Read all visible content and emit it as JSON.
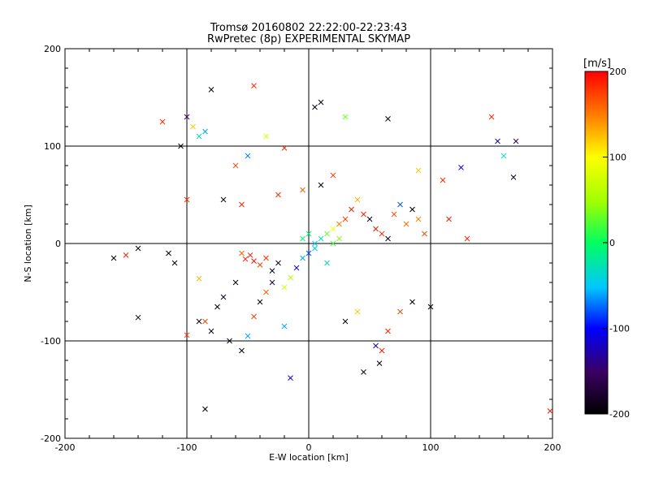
{
  "chart_data": {
    "type": "scatter",
    "title": "Tromsø 20160802 22:22:00-22:23:43",
    "subtitle": "RwPretec (8p) EXPERIMENTAL SKYMAP",
    "xlabel": "E-W location [km]",
    "ylabel": "N-S location [km]",
    "xlim": [
      -200,
      200
    ],
    "ylim": [
      -200,
      200
    ],
    "x_ticks": [
      "-200",
      "-100",
      "0",
      "100",
      "200"
    ],
    "y_ticks": [
      "-200",
      "-100",
      "0",
      "100",
      "200"
    ],
    "grid": true,
    "colorbar": {
      "label": "[m/s]",
      "range": [
        -200,
        200
      ],
      "ticks": [
        "-200",
        "-100",
        "0",
        "100",
        "200"
      ],
      "colormap": "rainbow: black-purple-blue-cyan-green-yellow-orange-red"
    },
    "marker_legend": "x = large marker, . = small marker (points colored by velocity)",
    "points": [
      {
        "x": -52,
        "y": -16,
        "v": 190,
        "m": "x"
      },
      {
        "x": -48,
        "y": -12,
        "v": 185,
        "m": "x"
      },
      {
        "x": -45,
        "y": -18,
        "v": 195,
        "m": "x"
      },
      {
        "x": -40,
        "y": -22,
        "v": 175,
        "m": "x"
      },
      {
        "x": -55,
        "y": -10,
        "v": 160,
        "m": "x"
      },
      {
        "x": -35,
        "y": -15,
        "v": 180,
        "m": "x"
      },
      {
        "x": -30,
        "y": -28,
        "v": -190,
        "m": "x"
      },
      {
        "x": -25,
        "y": -20,
        "v": -180,
        "m": "x"
      },
      {
        "x": -60,
        "y": -40,
        "v": -195,
        "m": "x"
      },
      {
        "x": -70,
        "y": -55,
        "v": -185,
        "m": "x"
      },
      {
        "x": -80,
        "y": -90,
        "v": -190,
        "m": "x"
      },
      {
        "x": -85,
        "y": -80,
        "v": 170,
        "m": "x"
      },
      {
        "x": -75,
        "y": -65,
        "v": -200,
        "m": "x"
      },
      {
        "x": -65,
        "y": -100,
        "v": -185,
        "m": "x"
      },
      {
        "x": -55,
        "y": -110,
        "v": -190,
        "m": "x"
      },
      {
        "x": -50,
        "y": -95,
        "v": -60,
        "m": "x"
      },
      {
        "x": -45,
        "y": -75,
        "v": 175,
        "m": "x"
      },
      {
        "x": -40,
        "y": -60,
        "v": -190,
        "m": "x"
      },
      {
        "x": -35,
        "y": -50,
        "v": 160,
        "m": "x"
      },
      {
        "x": -30,
        "y": -40,
        "v": -170,
        "m": "x"
      },
      {
        "x": -20,
        "y": -45,
        "v": 80,
        "m": "x"
      },
      {
        "x": -15,
        "y": -35,
        "v": 60,
        "m": "x"
      },
      {
        "x": -10,
        "y": -25,
        "v": -120,
        "m": "x"
      },
      {
        "x": -5,
        "y": -15,
        "v": -60,
        "m": "x"
      },
      {
        "x": 0,
        "y": -10,
        "v": -80,
        "m": "x"
      },
      {
        "x": 5,
        "y": -5,
        "v": -40,
        "m": "x"
      },
      {
        "x": 10,
        "y": 5,
        "v": -30,
        "m": "x"
      },
      {
        "x": 15,
        "y": 10,
        "v": 30,
        "m": "x"
      },
      {
        "x": 20,
        "y": 15,
        "v": 100,
        "m": "x"
      },
      {
        "x": 25,
        "y": 20,
        "v": 150,
        "m": "x"
      },
      {
        "x": 30,
        "y": 25,
        "v": 175,
        "m": "x"
      },
      {
        "x": 35,
        "y": 35,
        "v": 190,
        "m": "x"
      },
      {
        "x": 40,
        "y": 45,
        "v": 130,
        "m": "x"
      },
      {
        "x": 45,
        "y": 30,
        "v": 185,
        "m": "x"
      },
      {
        "x": 50,
        "y": 25,
        "v": -190,
        "m": "x"
      },
      {
        "x": 55,
        "y": 15,
        "v": 195,
        "m": "x"
      },
      {
        "x": 60,
        "y": 10,
        "v": 180,
        "m": "x"
      },
      {
        "x": 65,
        "y": 5,
        "v": -185,
        "m": "x"
      },
      {
        "x": 70,
        "y": 30,
        "v": 170,
        "m": "x"
      },
      {
        "x": 75,
        "y": 40,
        "v": -80,
        "m": "x"
      },
      {
        "x": 80,
        "y": 20,
        "v": 160,
        "m": "x"
      },
      {
        "x": 85,
        "y": 35,
        "v": -195,
        "m": "x"
      },
      {
        "x": 90,
        "y": 25,
        "v": 150,
        "m": "x"
      },
      {
        "x": 95,
        "y": 10,
        "v": 170,
        "m": "x"
      },
      {
        "x": 110,
        "y": 65,
        "v": 185,
        "m": "x"
      },
      {
        "x": 115,
        "y": 25,
        "v": 190,
        "m": "x"
      },
      {
        "x": 130,
        "y": 5,
        "v": 185,
        "m": "x"
      },
      {
        "x": 150,
        "y": 130,
        "v": 185,
        "m": "x"
      },
      {
        "x": 155,
        "y": 105,
        "v": -120,
        "m": "x"
      },
      {
        "x": 160,
        "y": 90,
        "v": -30,
        "m": "x"
      },
      {
        "x": 170,
        "y": 105,
        "v": -150,
        "m": "x"
      },
      {
        "x": 168,
        "y": 68,
        "v": -190,
        "m": "x"
      },
      {
        "x": 125,
        "y": 78,
        "v": -120,
        "m": "x"
      },
      {
        "x": 198,
        "y": -172,
        "v": 190,
        "m": "x"
      },
      {
        "x": -160,
        "y": -15,
        "v": -195,
        "m": "x"
      },
      {
        "x": -150,
        "y": -12,
        "v": 185,
        "m": "x"
      },
      {
        "x": -140,
        "y": -5,
        "v": -190,
        "m": "x"
      },
      {
        "x": -140,
        "y": -76,
        "v": -195,
        "m": "x"
      },
      {
        "x": -115,
        "y": -10,
        "v": -190,
        "m": "x"
      },
      {
        "x": -110,
        "y": -20,
        "v": -195,
        "m": "x"
      },
      {
        "x": -100,
        "y": 45,
        "v": 180,
        "m": "x"
      },
      {
        "x": -105,
        "y": 100,
        "v": -195,
        "m": "x"
      },
      {
        "x": -120,
        "y": 125,
        "v": 185,
        "m": "x"
      },
      {
        "x": -100,
        "y": 130,
        "v": -150,
        "m": "x"
      },
      {
        "x": -95,
        "y": 120,
        "v": 120,
        "m": "x"
      },
      {
        "x": -90,
        "y": 110,
        "v": -30,
        "m": "x"
      },
      {
        "x": -85,
        "y": 115,
        "v": -60,
        "m": "x"
      },
      {
        "x": -80,
        "y": 158,
        "v": -195,
        "m": "x"
      },
      {
        "x": -45,
        "y": 162,
        "v": 185,
        "m": "x"
      },
      {
        "x": 5,
        "y": 140,
        "v": -190,
        "m": "x"
      },
      {
        "x": 10,
        "y": 145,
        "v": -195,
        "m": "x"
      },
      {
        "x": 30,
        "y": 130,
        "v": 30,
        "m": "x"
      },
      {
        "x": 65,
        "y": 128,
        "v": -195,
        "m": "x"
      },
      {
        "x": -35,
        "y": 110,
        "v": 80,
        "m": "x"
      },
      {
        "x": -20,
        "y": 98,
        "v": 185,
        "m": "x"
      },
      {
        "x": -50,
        "y": 90,
        "v": -70,
        "m": "x"
      },
      {
        "x": -60,
        "y": 80,
        "v": 170,
        "m": "x"
      },
      {
        "x": -90,
        "y": -36,
        "v": 130,
        "m": "x"
      },
      {
        "x": -100,
        "y": -94,
        "v": 180,
        "m": "x"
      },
      {
        "x": -90,
        "y": -80,
        "v": -190,
        "m": "x"
      },
      {
        "x": -85,
        "y": -170,
        "v": -195,
        "m": "x"
      },
      {
        "x": -20,
        "y": -85,
        "v": -60,
        "m": "x"
      },
      {
        "x": -15,
        "y": -138,
        "v": -120,
        "m": "x"
      },
      {
        "x": 30,
        "y": -80,
        "v": -195,
        "m": "x"
      },
      {
        "x": 40,
        "y": -70,
        "v": 120,
        "m": "x"
      },
      {
        "x": 45,
        "y": -132,
        "v": -190,
        "m": "x"
      },
      {
        "x": 55,
        "y": -105,
        "v": -110,
        "m": "x"
      },
      {
        "x": 60,
        "y": -110,
        "v": 190,
        "m": "x"
      },
      {
        "x": 58,
        "y": -123,
        "v": -195,
        "m": "x"
      },
      {
        "x": 65,
        "y": -90,
        "v": 185,
        "m": "x"
      },
      {
        "x": 75,
        "y": -70,
        "v": 170,
        "m": "x"
      },
      {
        "x": 85,
        "y": -60,
        "v": -190,
        "m": "x"
      },
      {
        "x": 100,
        "y": -65,
        "v": -195,
        "m": "x"
      },
      {
        "x": 90,
        "y": 75,
        "v": 120,
        "m": "x"
      },
      {
        "x": 20,
        "y": 70,
        "v": 175,
        "m": "x"
      },
      {
        "x": 10,
        "y": 60,
        "v": -195,
        "m": "x"
      },
      {
        "x": -5,
        "y": 55,
        "v": 160,
        "m": "x"
      },
      {
        "x": -25,
        "y": 50,
        "v": 180,
        "m": "x"
      },
      {
        "x": -70,
        "y": 45,
        "v": -190,
        "m": "x"
      },
      {
        "x": -55,
        "y": 40,
        "v": 185,
        "m": "x"
      },
      {
        "x": 0,
        "y": 10,
        "v": -10,
        "m": "x"
      },
      {
        "x": 5,
        "y": 0,
        "v": -50,
        "m": "x"
      },
      {
        "x": 15,
        "y": -20,
        "v": -30,
        "m": "x"
      },
      {
        "x": -5,
        "y": 5,
        "v": 0,
        "m": "x"
      },
      {
        "x": 20,
        "y": 0,
        "v": 20,
        "m": "x"
      },
      {
        "x": 25,
        "y": 5,
        "v": 40,
        "m": "x"
      }
    ]
  }
}
